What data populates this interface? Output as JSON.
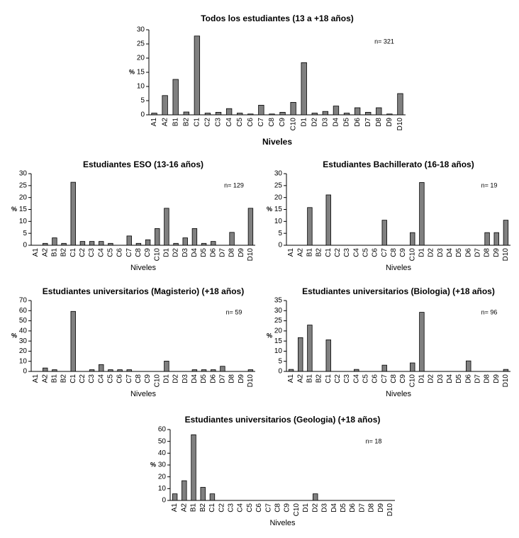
{
  "chart_data": [
    {
      "type": "bar",
      "title": "Todos los estudiantes (13 a +18 años)",
      "xlabel": "Niveles",
      "ylabel": "%",
      "annotation": "n= 321",
      "color": "#808080",
      "categories": [
        "A1",
        "A2",
        "B1",
        "B2",
        "C1",
        "C2",
        "C3",
        "C4",
        "C5",
        "C6",
        "C7",
        "C8",
        "C9",
        "C10",
        "D1",
        "D2",
        "D3",
        "D4",
        "D5",
        "D6",
        "D7",
        "D8",
        "D9",
        "D10"
      ],
      "values": [
        0.6,
        6.8,
        12.5,
        1,
        27.8,
        0.6,
        0.9,
        2.2,
        0.6,
        0.3,
        3.4,
        0.3,
        0.9,
        4.4,
        18.4,
        0.6,
        1.2,
        3.1,
        0.6,
        2.5,
        0.9,
        2.5,
        0.3,
        7.5
      ],
      "ylim": [
        0,
        30
      ],
      "yticks": [
        0,
        5,
        10,
        15,
        20,
        25,
        30
      ]
    },
    {
      "type": "bar",
      "title": "Estudiantes ESO (13-16 años)",
      "xlabel": "Niveles",
      "ylabel": "%",
      "annotation": "n= 129",
      "color": "#808080",
      "categories": [
        "A1",
        "A2",
        "B1",
        "B2",
        "C1",
        "C2",
        "C3",
        "C4",
        "C5",
        "C6",
        "C7",
        "C8",
        "C9",
        "C10",
        "D1",
        "D2",
        "D3",
        "D4",
        "D5",
        "D6",
        "D7",
        "D8",
        "D9",
        "D10"
      ],
      "values": [
        0,
        0.8,
        3.1,
        0.8,
        26.4,
        1.6,
        1.6,
        1.6,
        0.8,
        0,
        3.9,
        0.8,
        2.3,
        7,
        15.5,
        0.8,
        3.1,
        7,
        0.8,
        1.6,
        0,
        5.4,
        0,
        15.5
      ],
      "ylim": [
        0,
        30
      ],
      "yticks": [
        0,
        5,
        10,
        15,
        20,
        25,
        30
      ]
    },
    {
      "type": "bar",
      "title": "Estudiantes Bachillerato (16-18 años)",
      "xlabel": "Niveles",
      "ylabel": "%",
      "annotation": "n= 19",
      "color": "#808080",
      "categories": [
        "A1",
        "A2",
        "B1",
        "B2",
        "C1",
        "C2",
        "C3",
        "C4",
        "C5",
        "C6",
        "C7",
        "C8",
        "C9",
        "C10",
        "D1",
        "D2",
        "D3",
        "D4",
        "D5",
        "D6",
        "D7",
        "D8",
        "D9",
        "D10"
      ],
      "values": [
        0,
        0,
        15.8,
        0,
        21.1,
        0,
        0,
        0,
        0,
        0,
        10.5,
        0,
        0,
        5.3,
        26.3,
        0,
        0,
        0,
        0,
        0,
        0,
        5.3,
        5.3,
        10.5
      ],
      "ylim": [
        0,
        30
      ],
      "yticks": [
        0,
        5,
        10,
        15,
        20,
        25,
        30
      ]
    },
    {
      "type": "bar",
      "title": "Estudiantes universitarios (Magisterio) (+18 años)",
      "xlabel": "Niveles",
      "ylabel": "%",
      "annotation": "n= 59",
      "color": "#808080",
      "categories": [
        "A1",
        "A2",
        "B1",
        "B2",
        "C1",
        "C2",
        "C3",
        "C4",
        "C5",
        "C6",
        "C7",
        "C8",
        "C9",
        "C10",
        "D1",
        "D2",
        "D3",
        "D4",
        "D5",
        "D6",
        "D7",
        "D8",
        "D9",
        "D10"
      ],
      "values": [
        0,
        3.4,
        1.7,
        0,
        59.3,
        0,
        1.7,
        6.8,
        1.7,
        1.7,
        1.7,
        0,
        0,
        0,
        10.2,
        0,
        0,
        1.7,
        1.7,
        1.7,
        5.1,
        0,
        0,
        1.7
      ],
      "ylim": [
        0,
        70
      ],
      "yticks": [
        0,
        10,
        20,
        30,
        40,
        50,
        60,
        70
      ]
    },
    {
      "type": "bar",
      "title": "Estudiantes universitarios (Biologia) (+18 años)",
      "xlabel": "Niveles",
      "ylabel": "%",
      "annotation": "n= 96",
      "color": "#808080",
      "categories": [
        "A1",
        "A2",
        "B1",
        "B2",
        "C1",
        "C2",
        "C3",
        "C4",
        "C5",
        "C6",
        "C7",
        "C8",
        "C9",
        "C10",
        "D1",
        "D2",
        "D3",
        "D4",
        "D5",
        "D6",
        "D7",
        "D8",
        "D9",
        "D10"
      ],
      "values": [
        1,
        16.7,
        22.9,
        0,
        15.6,
        0,
        0,
        1,
        0,
        0,
        3.1,
        0,
        0,
        4.2,
        29.2,
        0,
        0,
        0,
        0,
        5.2,
        0,
        0,
        0,
        1
      ],
      "ylim": [
        0,
        35
      ],
      "yticks": [
        0,
        5,
        10,
        15,
        20,
        25,
        30,
        35
      ]
    },
    {
      "type": "bar",
      "title": "Estudiantes universitarios (Geologia) (+18 años)",
      "xlabel": "Niveles",
      "ylabel": "%",
      "annotation": "n= 18",
      "color": "#808080",
      "categories": [
        "A1",
        "A2",
        "B1",
        "B2",
        "C1",
        "C2",
        "C3",
        "C4",
        "C5",
        "C6",
        "C7",
        "C8",
        "C9",
        "C10",
        "D1",
        "D2",
        "D3",
        "D4",
        "D5",
        "D6",
        "D7",
        "D8",
        "D9",
        "D10"
      ],
      "values": [
        5.6,
        16.7,
        55.6,
        11.1,
        5.6,
        0,
        0,
        0,
        0,
        0,
        0,
        0,
        0,
        0,
        0,
        5.6,
        0,
        0,
        0,
        0,
        0,
        0,
        0,
        0
      ],
      "ylim": [
        0,
        60
      ],
      "yticks": [
        0,
        10,
        20,
        30,
        40,
        50,
        60
      ]
    }
  ]
}
